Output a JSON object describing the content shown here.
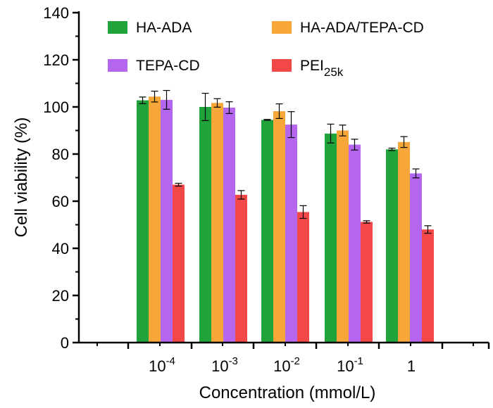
{
  "chart_data": {
    "type": "bar",
    "title": "",
    "xlabel": "Concentration (mmol/L)",
    "ylabel": "Cell viability (%)",
    "ylim": [
      0,
      140
    ],
    "yticks": [
      "0",
      "20",
      "40",
      "60",
      "80",
      "100",
      "120",
      "140"
    ],
    "categories": [
      {
        "base": "10",
        "exp": "-4"
      },
      {
        "base": "10",
        "exp": "-3"
      },
      {
        "base": "10",
        "exp": "-2"
      },
      {
        "base": "10",
        "exp": "-1"
      },
      {
        "base": "1",
        "exp": ""
      }
    ],
    "series": [
      {
        "name": "HA-ADA",
        "color": "#1fa33a",
        "values": [
          102.8,
          100.0,
          94.5,
          88.7,
          82.0
        ],
        "errors": [
          1.4,
          5.8,
          0.2,
          4.0,
          0.5
        ]
      },
      {
        "name": "HA-ADA/TEPA-CD",
        "color": "#f7a63a",
        "values": [
          104.4,
          101.7,
          98.2,
          90.0,
          85.1
        ],
        "errors": [
          2.3,
          1.8,
          3.1,
          2.3,
          2.3
        ]
      },
      {
        "name": "TEPA-CD",
        "color": "#b566ef",
        "values": [
          103.0,
          99.7,
          92.5,
          84.0,
          71.8
        ],
        "errors": [
          4.0,
          2.5,
          5.5,
          2.3,
          1.9
        ]
      },
      {
        "name": "PEI",
        "name_sub": "25k",
        "color": "#f24848",
        "values": [
          67.0,
          62.7,
          55.4,
          51.2,
          48.0
        ],
        "errors": [
          0.6,
          1.8,
          2.7,
          0.5,
          1.6
        ]
      }
    ],
    "grid": false,
    "legend_position": "top"
  }
}
